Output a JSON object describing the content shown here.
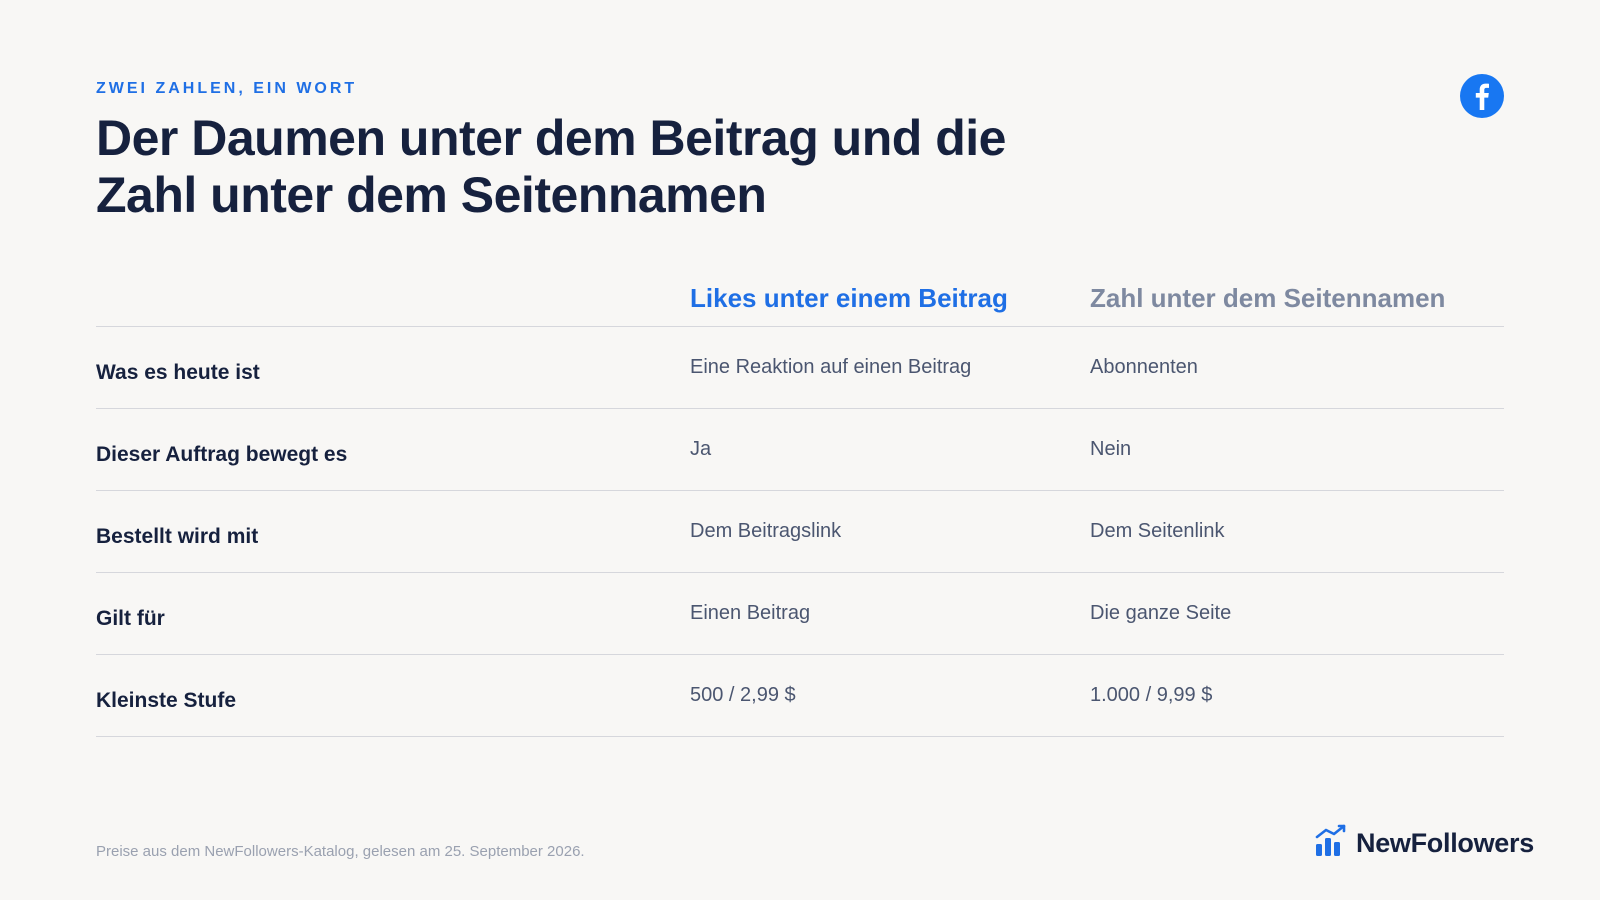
{
  "eyebrow": "ZWEI ZAHLEN, EIN WORT",
  "title": "Der Daumen unter dem Beitrag und die Zahl unter dem Seitennamen",
  "icons": {
    "top_right": "facebook-icon",
    "brand": "bar-chart-trend-icon"
  },
  "colors": {
    "accent": "#1f6fe5",
    "muted_header": "#7e89a0",
    "facebook": "#1877f2"
  },
  "table": {
    "headers": [
      "",
      "Likes unter einem Beitrag",
      "Zahl unter dem Seitennamen"
    ],
    "rows": [
      {
        "label": "Was es heute ist",
        "a": "Eine Reaktion auf einen Beitrag",
        "b": "Abonnenten"
      },
      {
        "label": "Dieser Auftrag bewegt es",
        "a": "Ja",
        "b": "Nein"
      },
      {
        "label": "Bestellt wird mit",
        "a": "Dem Beitragslink",
        "b": "Dem Seitenlink"
      },
      {
        "label": "Gilt für",
        "a": "Einen Beitrag",
        "b": "Die ganze Seite"
      },
      {
        "label": "Kleinste Stufe",
        "a": "500 / 2,99 $",
        "b": "1.000 / 9,99 $"
      }
    ]
  },
  "footnote": "Preise aus dem NewFollowers-Katalog, gelesen am 25. September 2026.",
  "brand": {
    "name": "NewFollowers"
  }
}
